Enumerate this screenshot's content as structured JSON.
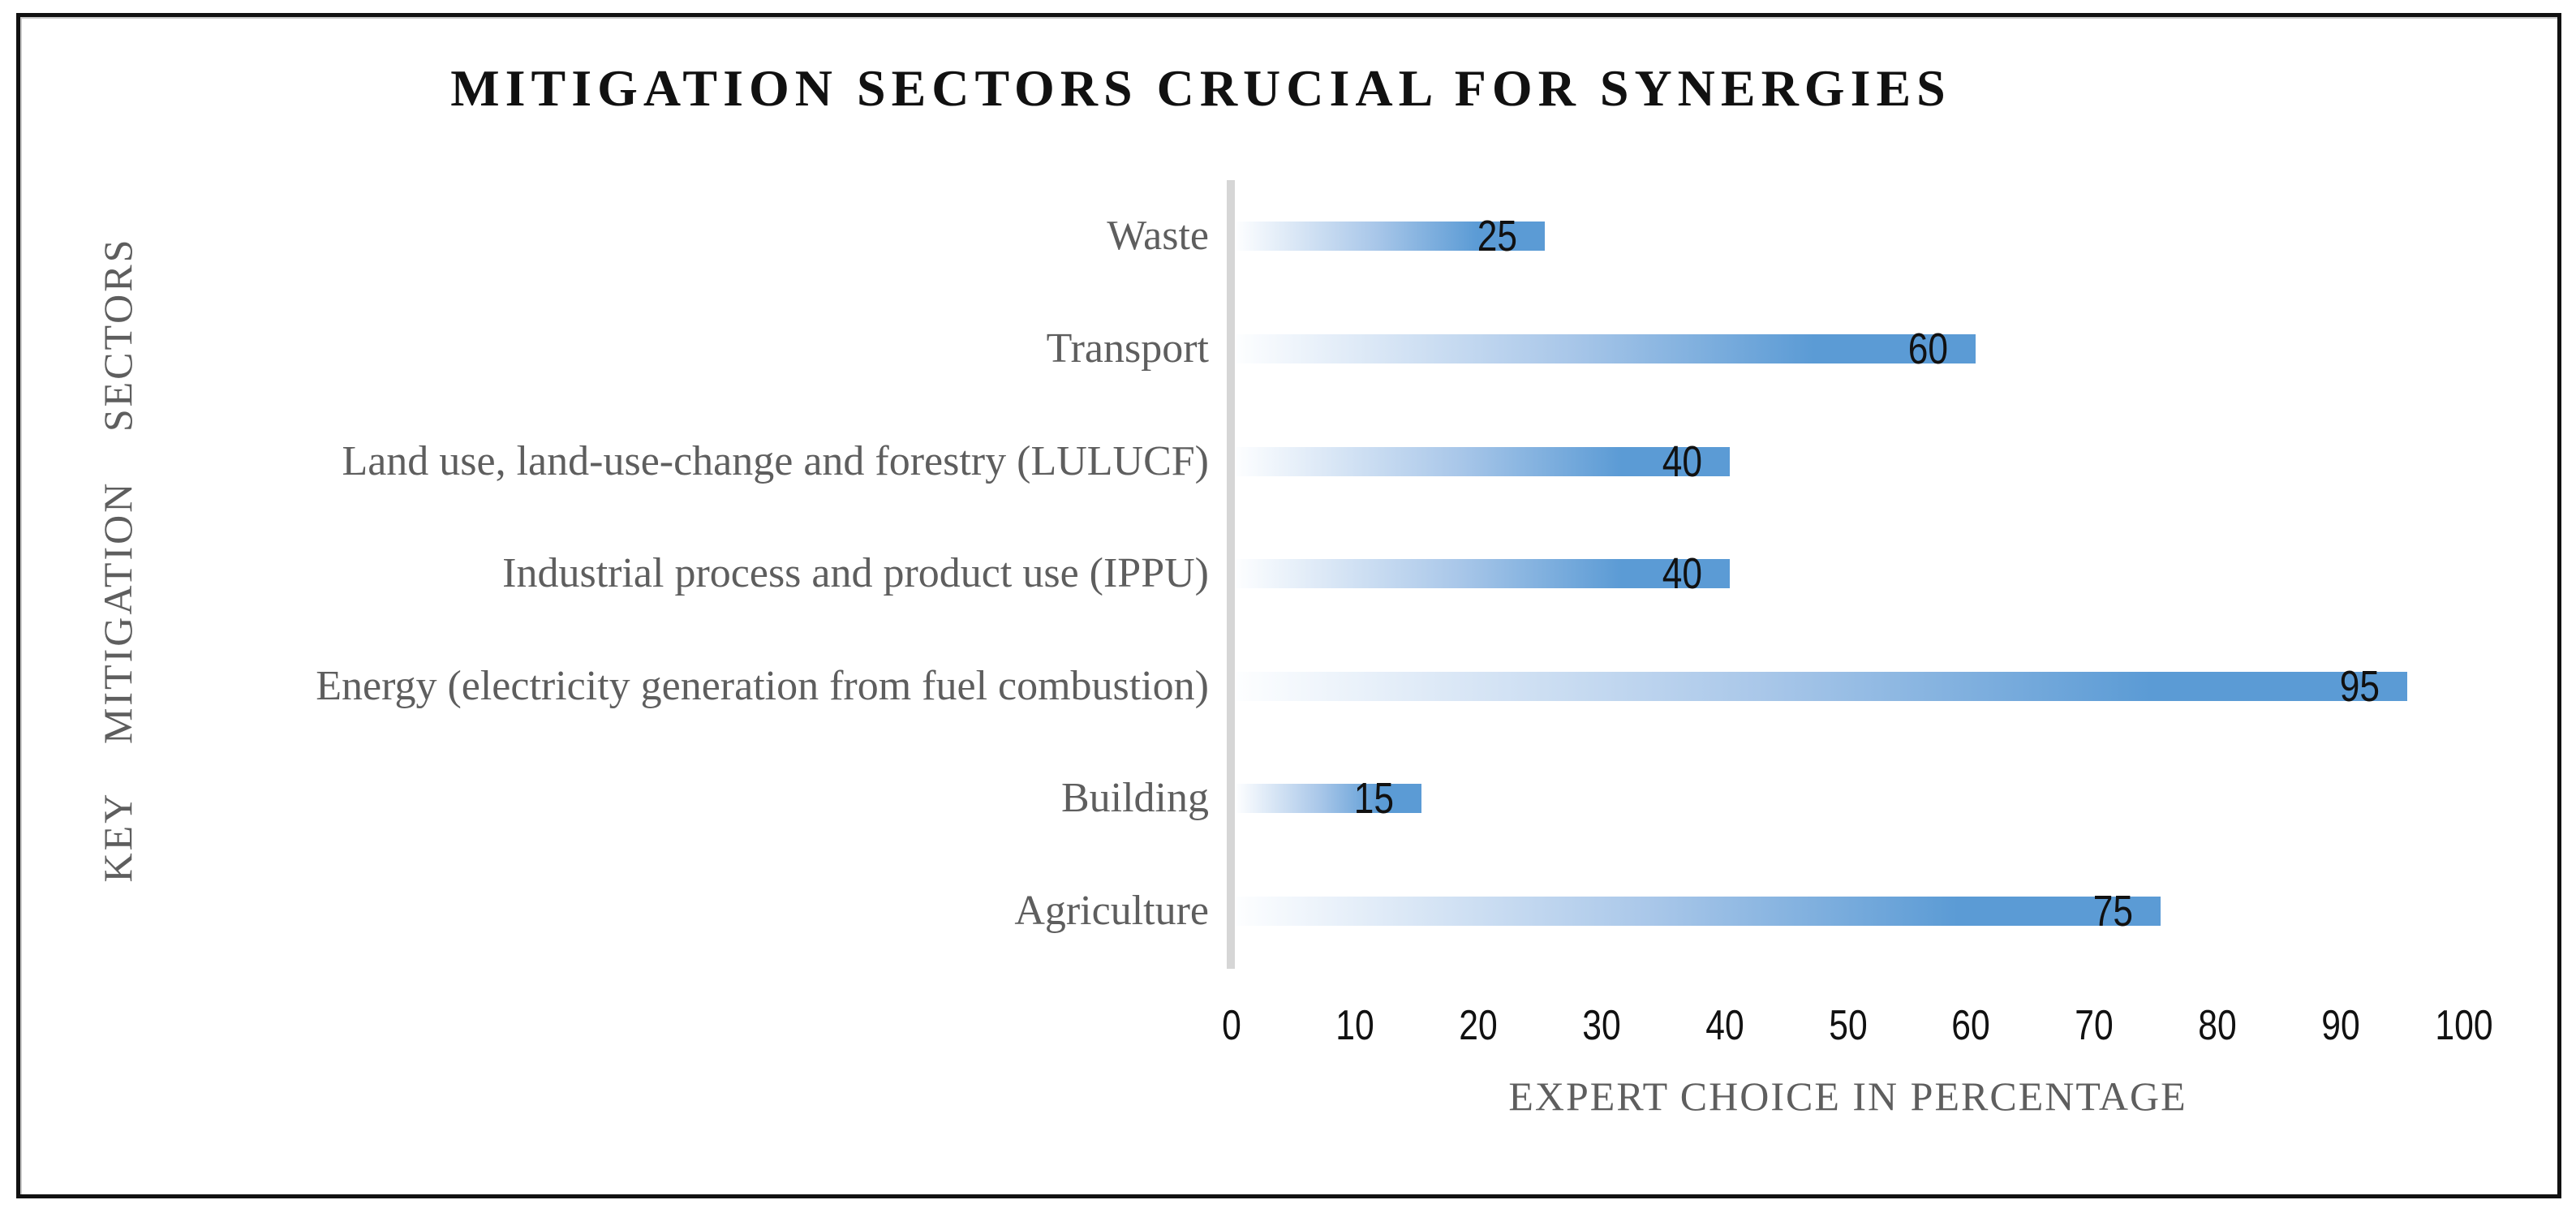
{
  "chart_data": {
    "type": "bar",
    "orientation": "horizontal",
    "title": "MITIGATION SECTORS CRUCIAL FOR SYNERGIES",
    "xlabel": "EXPERT CHOICE IN PERCENTAGE",
    "ylabel": "KEY MITIGATION SECTORS",
    "categories": [
      "Waste",
      "Transport",
      "Land use, land-use-change and forestry (LULUCF)",
      "Industrial process and product use (IPPU)",
      "Energy (electricity generation from fuel combustion)",
      "Building",
      "Agriculture"
    ],
    "values": [
      25,
      60,
      40,
      40,
      95,
      15,
      75
    ],
    "xlim": [
      0,
      100
    ],
    "xticks": [
      0,
      10,
      20,
      30,
      40,
      50,
      60,
      70,
      80,
      90,
      100
    ],
    "grid": false,
    "legend": false,
    "data_labels_position": "inside-end",
    "colors": {
      "bar_gradient_start": "#FDFEFF",
      "bar_gradient_mid": "#A9C7E9",
      "bar_gradient_end": "#5B9BD5",
      "axis_line": "#D6D6D6",
      "category_text": "#5E5E5E",
      "axis_title_text": "#5E5E5E",
      "value_text": "#111111",
      "title_text": "#111111",
      "frame_border": "#111111"
    }
  }
}
